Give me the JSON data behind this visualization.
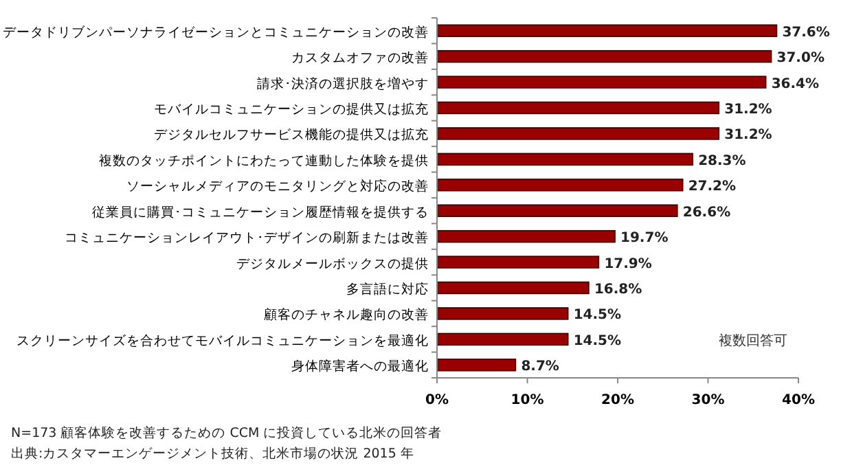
{
  "chart_data": {
    "type": "bar",
    "orientation": "horizontal",
    "categories": [
      "データドリブンパーソナライゼーションとコミュニケーションの改善",
      "カスタムオファの改善",
      "請求･決済の選択肢を増やす",
      "モバイルコミュニケーションの提供又は拡充",
      "デジタルセルフサービス機能の提供又は拡充",
      "複数のタッチポイントにわたって連動した体験を提供",
      "ソーシャルメディアのモニタリングと対応の改善",
      "従業員に購買･コミュニケーション履歴情報を提供する",
      "コミュニケーションレイアウト･デザインの刷新または改善",
      "デジタルメールボックスの提供",
      "多言語に対応",
      "顧客のチャネル趣向の改善",
      "スクリーンサイズを合わせてモバイルコミュニケーションを最適化",
      "身体障害者への最適化"
    ],
    "values": [
      37.6,
      37.0,
      36.4,
      31.2,
      31.2,
      28.3,
      27.2,
      26.6,
      19.7,
      17.9,
      16.8,
      14.5,
      14.5,
      8.7
    ],
    "value_labels": [
      "37.6%",
      "37.0%",
      "36.4%",
      "31.2%",
      "31.2%",
      "28.3%",
      "27.2%",
      "26.6%",
      "19.7%",
      "17.9%",
      "16.8%",
      "14.5%",
      "14.5%",
      "8.7%"
    ],
    "color": "#990000",
    "xlim": [
      0,
      40
    ],
    "xticks": [
      {
        "value": 0,
        "label": "0%"
      },
      {
        "value": 10,
        "label": "10%"
      },
      {
        "value": 20,
        "label": "20%"
      },
      {
        "value": 30,
        "label": "30%"
      },
      {
        "value": 40,
        "label": "40%"
      }
    ],
    "grid": false,
    "annotations": [
      "複数回答可",
      "N=173  顧客体験を改善するための CCM に投資している北米の回答者",
      "出典:カスタマーエンゲージメント技術、北米市場の状況 2015 年"
    ]
  }
}
